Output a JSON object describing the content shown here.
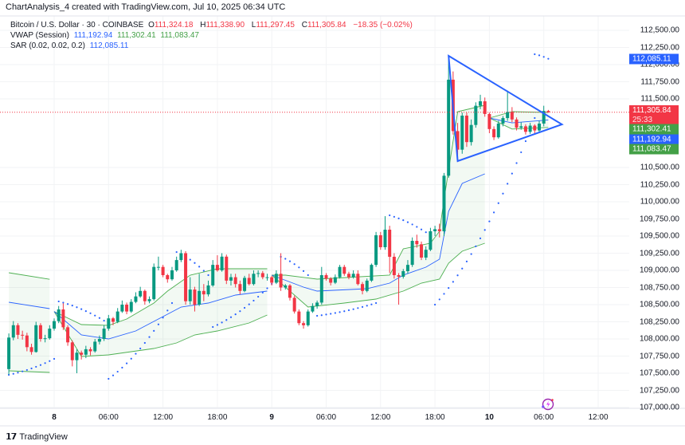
{
  "caption": "ChartAnalysis_4 created with TradingView.com, Jul 10, 2025 06:34 UTC",
  "legend": {
    "symbol": "Bitcoin / U.S. Dollar · 30 · COINBASE",
    "o_label": "O",
    "o": "111,324.18",
    "h_label": "H",
    "h": "111,338.90",
    "l_label": "L",
    "l": "111,297.45",
    "c_label": "C",
    "c": "111,305.84",
    "change": "−18.35 (−0.02%)",
    "vwap_label": "VWAP (Session)",
    "vwap_values": [
      "111,192.94",
      "111,302.41",
      "111,083.47"
    ],
    "sar_label": "SAR (0.02, 0.02, 0.2)",
    "sar_value": "112,085.11"
  },
  "price_axis": [
    "112,500.00",
    "112,250.00",
    "112,000.00",
    "111,750.00",
    "111,500.00",
    "110,500.00",
    "110,250.00",
    "110,000.00",
    "109,750.00",
    "109,500.00",
    "109,250.00",
    "109,000.00",
    "108,750.00",
    "108,500.00",
    "108,250.00",
    "108,000.00",
    "107,750.00",
    "107,500.00",
    "107,250.00",
    "107,000.00"
  ],
  "price_tags": {
    "sar": "112,085.11",
    "last": "111,305.84",
    "countdown": "25:33",
    "vwap_upper": "111,302.41",
    "vwap": "111,192.94",
    "vwap_lower": "111,083.47"
  },
  "time_axis": [
    {
      "label": "8",
      "bold": true,
      "time": "Jul 8 00:00"
    },
    {
      "label": "06:00",
      "time": "Jul 8 06:00"
    },
    {
      "label": "12:00",
      "time": "Jul 8 12:00"
    },
    {
      "label": "18:00",
      "time": "Jul 8 18:00"
    },
    {
      "label": "9",
      "bold": true,
      "time": "Jul 9 00:00"
    },
    {
      "label": "06:00",
      "time": "Jul 9 06:00"
    },
    {
      "label": "12:00",
      "time": "Jul 9 12:00"
    },
    {
      "label": "18:00",
      "time": "Jul 9 18:00"
    },
    {
      "label": "10",
      "bold": true,
      "time": "Jul 10 00:00"
    },
    {
      "label": "06:00",
      "time": "Jul 10 06:00"
    },
    {
      "label": "12:00",
      "time": "Jul 10 12:00"
    }
  ],
  "colors": {
    "up": "#089981",
    "down": "#f23645",
    "vwap": "#2962ff",
    "band": "#4caf50",
    "sar": "#2962ff",
    "triangle": "#2962ff",
    "last_price": "#f23645"
  },
  "chart_data": {
    "type": "candlestick",
    "interval_minutes": 30,
    "first_candle_time": "Jul 7 19:00",
    "ylim": [
      107000,
      112500
    ],
    "candles_ohlc": [
      [
        107560,
        108080,
        107480,
        108020
      ],
      [
        108020,
        108260,
        107980,
        108200
      ],
      [
        108200,
        108230,
        108000,
        108060
      ],
      [
        108060,
        108120,
        107990,
        108050
      ],
      [
        108050,
        108090,
        107820,
        107880
      ],
      [
        107880,
        107930,
        107770,
        107810
      ],
      [
        107810,
        108250,
        107800,
        108200
      ],
      [
        108200,
        108230,
        107960,
        108000
      ],
      [
        108000,
        108060,
        107950,
        108010
      ],
      [
        108010,
        108200,
        107990,
        108150
      ],
      [
        108150,
        108300,
        108120,
        108260
      ],
      [
        108260,
        108480,
        108230,
        108430
      ],
      [
        108430,
        108520,
        108130,
        108170
      ],
      [
        108170,
        108200,
        107900,
        107950
      ],
      [
        107950,
        107980,
        107600,
        107690
      ],
      [
        107690,
        107850,
        107500,
        107800
      ],
      [
        107800,
        107830,
        107700,
        107770
      ],
      [
        107770,
        107900,
        107720,
        107850
      ],
      [
        107850,
        107880,
        107760,
        107820
      ],
      [
        107820,
        108000,
        107800,
        107960
      ],
      [
        107960,
        108050,
        107920,
        108000
      ],
      [
        108000,
        108200,
        107970,
        108150
      ],
      [
        108150,
        108350,
        108120,
        108300
      ],
      [
        108300,
        108320,
        108200,
        108250
      ],
      [
        108250,
        108450,
        108230,
        108400
      ],
      [
        108400,
        108560,
        108380,
        108500
      ],
      [
        108500,
        108530,
        108360,
        108400
      ],
      [
        108400,
        108580,
        108380,
        108540
      ],
      [
        108540,
        108680,
        108520,
        108620
      ],
      [
        108620,
        108760,
        108600,
        108700
      ],
      [
        108700,
        108720,
        108500,
        108550
      ],
      [
        108550,
        108620,
        108520,
        108580
      ],
      [
        108580,
        109100,
        108560,
        109050
      ],
      [
        109050,
        109200,
        109000,
        109050
      ],
      [
        109050,
        109080,
        108900,
        108930
      ],
      [
        108930,
        108950,
        108820,
        108870
      ],
      [
        108870,
        109050,
        108850,
        109000
      ],
      [
        109000,
        109200,
        108980,
        109150
      ],
      [
        109150,
        109300,
        109120,
        109250
      ],
      [
        109250,
        109280,
        108500,
        108550
      ],
      [
        108550,
        108900,
        108500,
        108720
      ],
      [
        108720,
        108760,
        108400,
        108500
      ],
      [
        108500,
        108950,
        108480,
        108700
      ],
      [
        108700,
        108800,
        108550,
        108650
      ],
      [
        108650,
        108850,
        108620,
        108780
      ],
      [
        108780,
        109150,
        108760,
        109080
      ],
      [
        109080,
        109220,
        108980,
        109000
      ],
      [
        109000,
        109250,
        108980,
        109200
      ],
      [
        109200,
        109230,
        108800,
        108850
      ],
      [
        108850,
        108950,
        108780,
        108900
      ],
      [
        108900,
        108950,
        108750,
        108800
      ],
      [
        108800,
        108850,
        108650,
        108700
      ],
      [
        108700,
        108920,
        108680,
        108890
      ],
      [
        108890,
        108950,
        108780,
        108800
      ],
      [
        108800,
        109000,
        108780,
        108950
      ],
      [
        108950,
        109000,
        108900,
        108960
      ],
      [
        108960,
        108990,
        108870,
        108900
      ],
      [
        108900,
        108950,
        108850,
        108900
      ],
      [
        108900,
        108920,
        108780,
        108820
      ],
      [
        108820,
        109000,
        108800,
        108950
      ],
      [
        108950,
        109250,
        108700,
        108750
      ],
      [
        108750,
        108800,
        108720,
        108780
      ],
      [
        108780,
        108800,
        108560,
        108600
      ],
      [
        108600,
        108630,
        108370,
        108400
      ],
      [
        108400,
        108430,
        108200,
        108230
      ],
      [
        108230,
        108260,
        108150,
        108200
      ],
      [
        108200,
        108430,
        108180,
        108400
      ],
      [
        108400,
        108520,
        108380,
        108480
      ],
      [
        108480,
        108560,
        108440,
        108530
      ],
      [
        108530,
        109050,
        108500,
        108930
      ],
      [
        108930,
        108960,
        108850,
        108880
      ],
      [
        108880,
        108900,
        108780,
        108820
      ],
      [
        108820,
        108940,
        108800,
        108900
      ],
      [
        108900,
        109080,
        108880,
        109050
      ],
      [
        109050,
        109080,
        108920,
        108950
      ],
      [
        108950,
        108980,
        108870,
        108900
      ],
      [
        108900,
        109000,
        108880,
        108950
      ],
      [
        108950,
        109000,
        108780,
        108800
      ],
      [
        108800,
        108830,
        108650,
        108700
      ],
      [
        108700,
        108880,
        108680,
        108850
      ],
      [
        108850,
        109100,
        108830,
        109080
      ],
      [
        109080,
        109560,
        109050,
        109512
      ],
      [
        109512,
        109560,
        109300,
        109337
      ],
      [
        109337,
        109790,
        109300,
        109593
      ],
      [
        109593,
        109650,
        108960,
        109198
      ],
      [
        109198,
        109250,
        108880,
        108930
      ],
      [
        108930,
        108960,
        108500,
        108907
      ],
      [
        108907,
        109020,
        108880,
        108988
      ],
      [
        108988,
        109150,
        108950,
        109080
      ],
      [
        109080,
        109480,
        109050,
        109430
      ],
      [
        109430,
        109520,
        109330,
        109380
      ],
      [
        109380,
        109420,
        109150,
        109186
      ],
      [
        109186,
        109350,
        109150,
        109300
      ],
      [
        109300,
        109620,
        109280,
        109570
      ],
      [
        109570,
        109650,
        109500,
        109600
      ],
      [
        109600,
        109680,
        109480,
        109570
      ],
      [
        109570,
        110420,
        109500,
        110380
      ],
      [
        110380,
        112130,
        110350,
        111780
      ],
      [
        111780,
        111900,
        110980,
        111030
      ],
      [
        111030,
        111150,
        110580,
        110760
      ],
      [
        110760,
        111300,
        110700,
        111256
      ],
      [
        111256,
        111300,
        110800,
        110870
      ],
      [
        110870,
        111200,
        110820,
        111120
      ],
      [
        111120,
        111450,
        111080,
        111400
      ],
      [
        111400,
        111560,
        111350,
        111465
      ],
      [
        111465,
        111520,
        111240,
        111280
      ],
      [
        111280,
        111300,
        111000,
        111060
      ],
      [
        111060,
        111100,
        110900,
        110940
      ],
      [
        110940,
        111180,
        110920,
        111140
      ],
      [
        111140,
        111250,
        111100,
        111220
      ],
      [
        111220,
        111620,
        111180,
        111310
      ],
      [
        111310,
        111380,
        111160,
        111200
      ],
      [
        111200,
        111230,
        111040,
        111080
      ],
      [
        111080,
        111160,
        111050,
        111100
      ],
      [
        111100,
        111130,
        110980,
        111020
      ],
      [
        111020,
        111150,
        110990,
        111110
      ],
      [
        111110,
        111130,
        110990,
        111040
      ],
      [
        111040,
        111180,
        111020,
        111140
      ],
      [
        111140,
        111400,
        111100,
        111324.18
      ],
      [
        111324.18,
        111338.9,
        111297.45,
        111305.84
      ]
    ],
    "vwap_sessions": [
      {
        "upper": [
          [
            "Jul 7 19:00",
            108965
          ],
          [
            "Jul 7 23:30",
            108870
          ]
        ],
        "vwap": [
          [
            "Jul 7 19:00",
            108535
          ],
          [
            "Jul 7 23:30",
            108442
          ]
        ],
        "lower": [
          [
            "Jul 7 19:00",
            107535
          ],
          [
            "Jul 7 23:30",
            107512
          ]
        ]
      },
      {
        "upper": [
          [
            "Jul 8 00:00",
            108400
          ],
          [
            "Jul 8 03:00",
            108209
          ],
          [
            "Jul 8 06:00",
            108198
          ],
          [
            "Jul 8 08:00",
            108291
          ],
          [
            "Jul 8 11:00",
            108523
          ],
          [
            "Jul 8 12:30",
            108698
          ],
          [
            "Jul 8 15:00",
            108930
          ],
          [
            "Jul 8 18:00",
            109023
          ],
          [
            "Jul 8 23:30",
            109023
          ]
        ],
        "vwap": [
          [
            "Jul 8 00:00",
            108400
          ],
          [
            "Jul 8 03:00",
            108058
          ],
          [
            "Jul 8 06:00",
            108000
          ],
          [
            "Jul 8 09:00",
            108116
          ],
          [
            "Jul 8 11:30",
            108291
          ],
          [
            "Jul 8 14:00",
            108465
          ],
          [
            "Jul 8 17:00",
            108523
          ],
          [
            "Jul 8 20:00",
            108640
          ],
          [
            "Jul 8 23:30",
            108698
          ]
        ],
        "lower": [
          [
            "Jul 8 00:00",
            108400
          ],
          [
            "Jul 8 03:00",
            107744
          ],
          [
            "Jul 8 06:00",
            107767
          ],
          [
            "Jul 8 11:00",
            107860
          ],
          [
            "Jul 8 13:30",
            107942
          ],
          [
            "Jul 8 15:30",
            108058
          ],
          [
            "Jul 8 18:00",
            108116
          ],
          [
            "Jul 8 21:30",
            108233
          ],
          [
            "Jul 8 23:30",
            108349
          ]
        ]
      },
      {
        "upper": [
          [
            "Jul 9 00:00",
            108930
          ],
          [
            "Jul 9 01:30",
            108930
          ],
          [
            "Jul 9 05:00",
            108872
          ],
          [
            "Jul 9 13:00",
            108930
          ],
          [
            "Jul 9 14:30",
            109314
          ],
          [
            "Jul 9 17:30",
            109395
          ],
          [
            "Jul 9 18:30",
            109570
          ],
          [
            "Jul 9 19:00",
            110035
          ],
          [
            "Jul 9 20:30",
            111314
          ],
          [
            "Jul 9 23:30",
            111407
          ]
        ],
        "vwap": [
          [
            "Jul 9 00:00",
            108930
          ],
          [
            "Jul 9 03:30",
            108756
          ],
          [
            "Jul 9 05:00",
            108698
          ],
          [
            "Jul 9 10:30",
            108733
          ],
          [
            "Jul 9 13:00",
            108814
          ],
          [
            "Jul 9 14:30",
            108930
          ],
          [
            "Jul 9 17:00",
            109047
          ],
          [
            "Jul 9 18:30",
            109163
          ],
          [
            "Jul 9 19:30",
            109860
          ],
          [
            "Jul 9 21:00",
            110267
          ],
          [
            "Jul 9 23:30",
            110407
          ]
        ],
        "lower": [
          [
            "Jul 9 00:00",
            108930
          ],
          [
            "Jul 9 04:00",
            108465
          ],
          [
            "Jul 9 08:00",
            108523
          ],
          [
            "Jul 9 11:30",
            108581
          ],
          [
            "Jul 9 14:30",
            108698
          ],
          [
            "Jul 9 16:30",
            108814
          ],
          [
            "Jul 9 18:30",
            108872
          ],
          [
            "Jul 9 19:30",
            109105
          ],
          [
            "Jul 9 21:00",
            109279
          ],
          [
            "Jul 9 23:30",
            109395
          ]
        ]
      },
      {
        "upper": [
          [
            "Jul 10 00:00",
            111221
          ],
          [
            "Jul 10 02:30",
            111314
          ],
          [
            "Jul 10 06:30",
            111302.41
          ]
        ],
        "vwap": [
          [
            "Jul 10 00:00",
            111221
          ],
          [
            "Jul 10 02:30",
            111150
          ],
          [
            "Jul 10 06:30",
            111192.94
          ]
        ],
        "lower": [
          [
            "Jul 10 00:00",
            111221
          ],
          [
            "Jul 10 02:30",
            111060
          ],
          [
            "Jul 10 06:30",
            111083.47
          ]
        ]
      }
    ],
    "sar_segments": [
      {
        "from": [
          "Jul 7 19:00",
          107477
        ],
        "to": [
          "Jul 8 00:00",
          107709
        ]
      },
      {
        "from": [
          "Jul 8 00:30",
          108547
        ],
        "to": [
          "Jul 8 05:30",
          108267
        ]
      },
      {
        "from": [
          "Jul 8 06:00",
          107419
        ],
        "to": [
          "Jul 8 13:00",
          108523
        ]
      },
      {
        "from": [
          "Jul 8 13:30",
          109267
        ],
        "to": [
          "Jul 8 17:00",
          108930
        ]
      },
      {
        "from": [
          "Jul 8 17:30",
          108174
        ],
        "to": [
          "Jul 9 00:30",
          108872
        ]
      },
      {
        "from": [
          "Jul 9 01:00",
          109198
        ],
        "to": [
          "Jul 9 04:00",
          108930
        ]
      },
      {
        "from": [
          "Jul 9 05:00",
          108337
        ],
        "to": [
          "Jul 9 11:30",
          108523
        ]
      },
      {
        "from": [
          "Jul 9 13:00",
          109802
        ],
        "to": [
          "Jul 9 17:30",
          109512
        ]
      },
      {
        "from": [
          "Jul 9 18:00",
          108500
        ],
        "to": [
          "Jul 10 05:00",
          111221
        ]
      },
      {
        "from": [
          "Jul 10 05:00",
          112151
        ],
        "to": [
          "Jul 10 06:30",
          112085.11
        ]
      }
    ],
    "triangle": [
      [
        "Jul 9 19:30",
        112128
      ],
      [
        "Jul 10 08:00",
        111128
      ],
      [
        "Jul 9 20:30",
        110593
      ]
    ],
    "last_price": 111305.84
  },
  "branding": {
    "logo_mark": "TV",
    "logo_text": "TradingView"
  }
}
